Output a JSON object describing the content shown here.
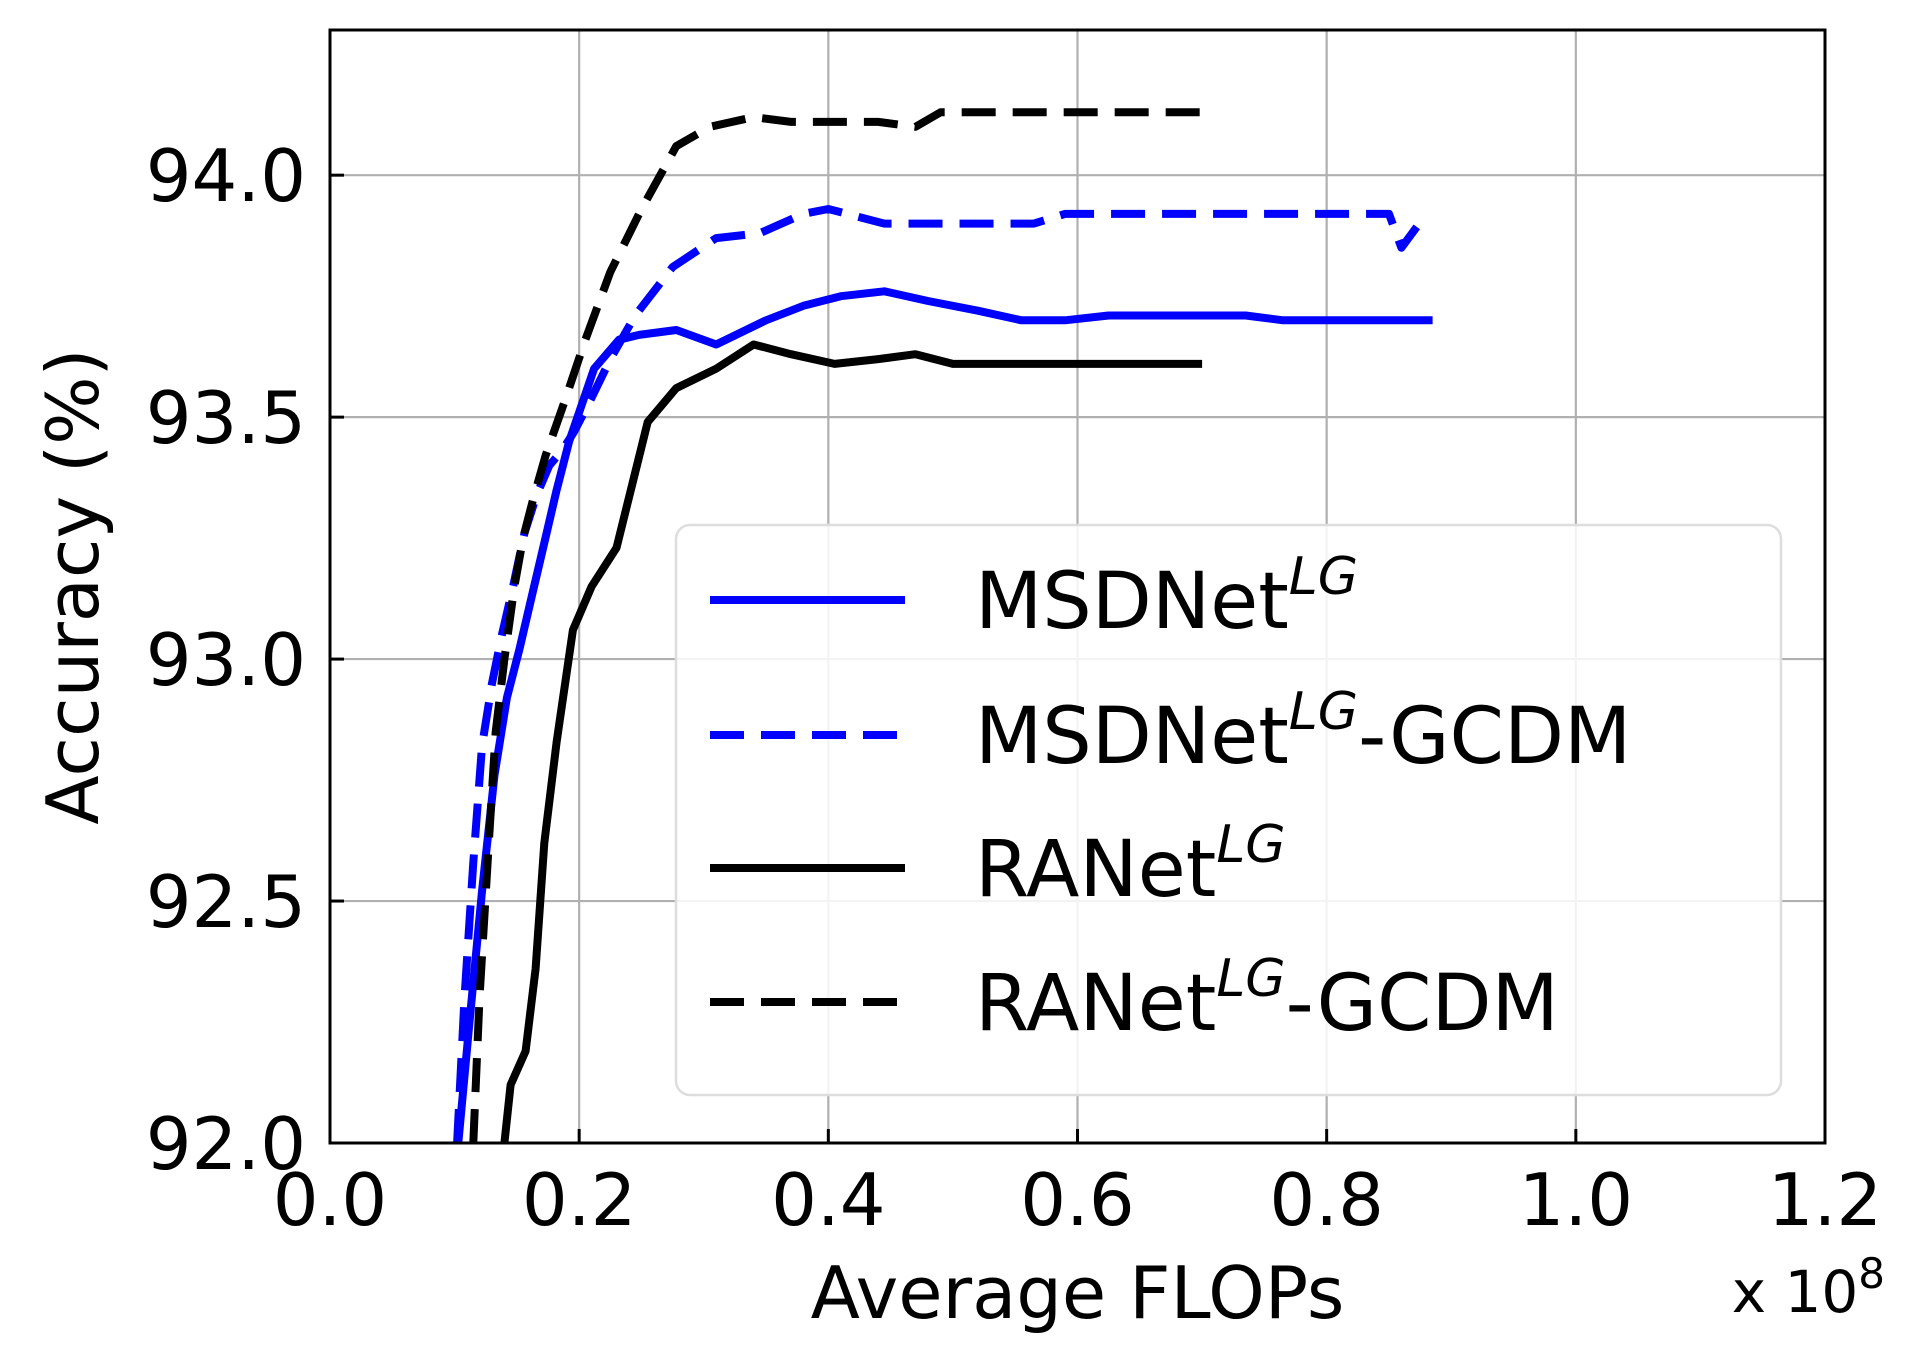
{
  "chart_data": {
    "type": "line",
    "xlabel": "Average FLOPs",
    "ylabel": "Accuracy (%)",
    "x_multiplier": "x 10",
    "x_multiplier_exp": "8",
    "xlim": [
      0.0,
      1.2
    ],
    "ylim": [
      92.0,
      94.3
    ],
    "xticks": [
      "0.0",
      "0.2",
      "0.4",
      "0.6",
      "0.8",
      "1.0",
      "1.2"
    ],
    "yticks": [
      "92.0",
      "92.5",
      "93.0",
      "93.5",
      "94.0"
    ],
    "grid": true,
    "legend_position": "lower-right",
    "series": [
      {
        "name": "MSDNet",
        "name_sup": "LG",
        "name_suffix": "",
        "color": "#0000ff",
        "dash": "solid",
        "x": [
          0.103,
          0.112,
          0.122,
          0.132,
          0.142,
          0.152,
          0.162,
          0.172,
          0.182,
          0.192,
          0.212,
          0.232,
          0.248,
          0.278,
          0.31,
          0.35,
          0.38,
          0.41,
          0.445,
          0.48,
          0.52,
          0.555,
          0.59,
          0.625,
          0.66,
          0.7,
          0.735,
          0.765,
          0.8,
          0.84,
          0.885
        ],
        "y": [
          92.0,
          92.25,
          92.52,
          92.76,
          92.92,
          93.02,
          93.13,
          93.24,
          93.35,
          93.45,
          93.6,
          93.66,
          93.67,
          93.68,
          93.65,
          93.7,
          93.73,
          93.75,
          93.76,
          93.74,
          93.72,
          93.7,
          93.7,
          93.71,
          93.71,
          93.71,
          93.71,
          93.7,
          93.7,
          93.7,
          93.7
        ]
      },
      {
        "name": "MSDNet",
        "name_sup": "LG",
        "name_suffix": "-GCDM",
        "color": "#0000ff",
        "dash": "dashed",
        "x": [
          0.102,
          0.108,
          0.115,
          0.122,
          0.13,
          0.138,
          0.147,
          0.156,
          0.166,
          0.176,
          0.186,
          0.196,
          0.21,
          0.225,
          0.245,
          0.275,
          0.31,
          0.345,
          0.38,
          0.4,
          0.445,
          0.49,
          0.53,
          0.565,
          0.59,
          0.625,
          0.66,
          0.7,
          0.74,
          0.78,
          0.82,
          0.85,
          0.86,
          0.88
        ],
        "y": [
          92.0,
          92.3,
          92.58,
          92.82,
          92.95,
          93.05,
          93.15,
          93.26,
          93.34,
          93.4,
          93.43,
          93.47,
          93.54,
          93.62,
          93.71,
          93.81,
          93.87,
          93.88,
          93.92,
          93.93,
          93.9,
          93.9,
          93.9,
          93.9,
          93.92,
          93.92,
          93.92,
          93.92,
          93.92,
          93.92,
          93.92,
          93.92,
          93.85,
          93.92
        ]
      },
      {
        "name": "RANet",
        "name_sup": "LG",
        "name_suffix": "",
        "color": "#000000",
        "dash": "solid",
        "x": [
          0.14,
          0.145,
          0.157,
          0.165,
          0.172,
          0.182,
          0.195,
          0.21,
          0.23,
          0.255,
          0.278,
          0.31,
          0.34,
          0.37,
          0.405,
          0.44,
          0.47,
          0.5,
          0.525,
          0.56,
          0.6,
          0.64,
          0.7
        ],
        "y": [
          92.0,
          92.12,
          92.19,
          92.36,
          92.62,
          92.83,
          93.06,
          93.15,
          93.23,
          93.49,
          93.56,
          93.6,
          93.65,
          93.63,
          93.61,
          93.62,
          93.63,
          93.61,
          93.61,
          93.61,
          93.61,
          93.61,
          93.61
        ]
      },
      {
        "name": "RANet",
        "name_sup": "LG",
        "name_suffix": "-GCDM",
        "color": "#000000",
        "dash": "dashed",
        "x": [
          0.115,
          0.12,
          0.127,
          0.133,
          0.14,
          0.148,
          0.155,
          0.163,
          0.173,
          0.188,
          0.205,
          0.225,
          0.25,
          0.278,
          0.305,
          0.34,
          0.37,
          0.4,
          0.44,
          0.47,
          0.49,
          0.52,
          0.56,
          0.6,
          0.65,
          0.7
        ],
        "y": [
          92.0,
          92.3,
          92.6,
          92.85,
          93.0,
          93.15,
          93.25,
          93.33,
          93.42,
          93.53,
          93.66,
          93.8,
          93.93,
          94.06,
          94.1,
          94.12,
          94.11,
          94.11,
          94.11,
          94.1,
          94.13,
          94.13,
          94.13,
          94.13,
          94.13,
          94.13
        ]
      }
    ]
  }
}
